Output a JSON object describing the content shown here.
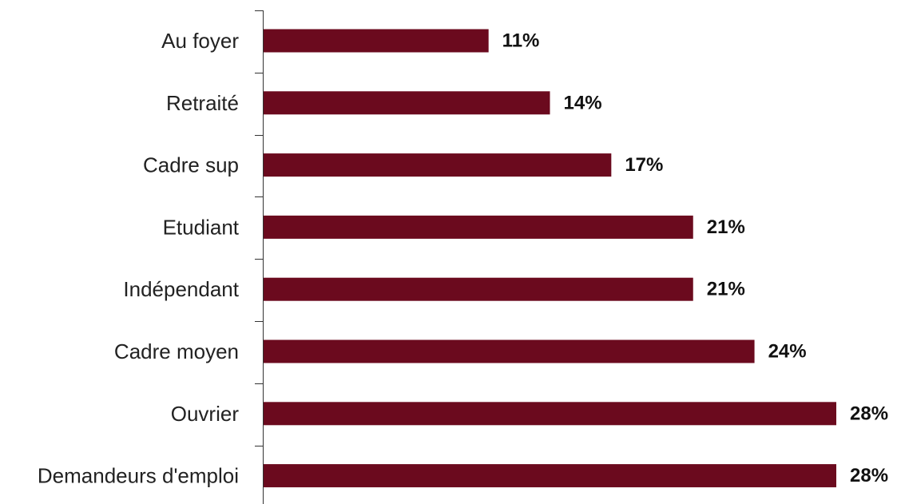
{
  "chart_data": {
    "type": "bar",
    "orientation": "horizontal",
    "categories": [
      "Au foyer",
      "Retraité",
      "Cadre sup",
      "Etudiant",
      "Indépendant",
      "Cadre moyen",
      "Ouvrier",
      "Demandeurs d'emploi"
    ],
    "values": [
      11,
      14,
      17,
      21,
      21,
      24,
      28,
      28
    ],
    "data_labels": [
      "11%",
      "14%",
      "17%",
      "21%",
      "21%",
      "24%",
      "28%",
      "28%"
    ],
    "unit": "%",
    "bar_color": "#6b0a1e",
    "xlim": [
      0,
      28
    ],
    "grid": false,
    "legend": "none",
    "title": "",
    "xlabel": "",
    "ylabel": ""
  }
}
